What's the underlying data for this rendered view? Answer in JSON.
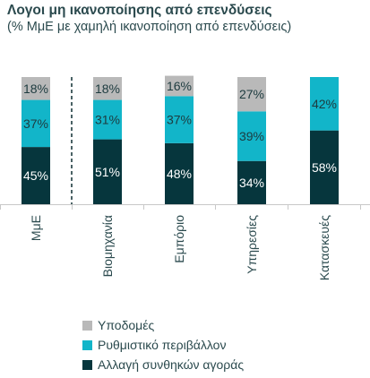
{
  "chart_data": {
    "type": "bar",
    "stacked": true,
    "title": "Λογοι μη ικανοποίησης από επενδύσεις",
    "subtitle": "(% ΜμΕ με χαμηλή ικανοποίηση από επενδύσεις)",
    "categories": [
      "ΜμΕ",
      "Βιομηχανία",
      "Εμπόριο",
      "Υπηρεσίες",
      "Κατασκευές"
    ],
    "series": [
      {
        "name": "Αλλαγή συνθηκών αγοράς",
        "color": "#06363d",
        "label_color": "#ffffff",
        "values": [
          45,
          51,
          48,
          34,
          58
        ]
      },
      {
        "name": "Ρυθμιστικό περιβάλλον",
        "color": "#12b5c9",
        "label_color": "#1d3b3f",
        "values": [
          37,
          31,
          37,
          39,
          42
        ]
      },
      {
        "name": "Υποδομές",
        "color": "#b9b9b9",
        "label_color": "#1d3b3f",
        "values": [
          18,
          18,
          16,
          27,
          null
        ]
      }
    ],
    "data_labels": [
      [
        "45%",
        "51%",
        "48%",
        "34%",
        "58%"
      ],
      [
        "37%",
        "31%",
        "37%",
        "39%",
        "42%"
      ],
      [
        "18%",
        "18%",
        "16%",
        "27%",
        ""
      ]
    ],
    "ylim": [
      0,
      100
    ],
    "grid": false,
    "separator_after_category": 0,
    "legend_position": "bottom",
    "legend_order": [
      "Υποδομές",
      "Ρυθμιστικό περιβάλλον",
      "Αλλαγή συνθηκών αγοράς"
    ]
  }
}
